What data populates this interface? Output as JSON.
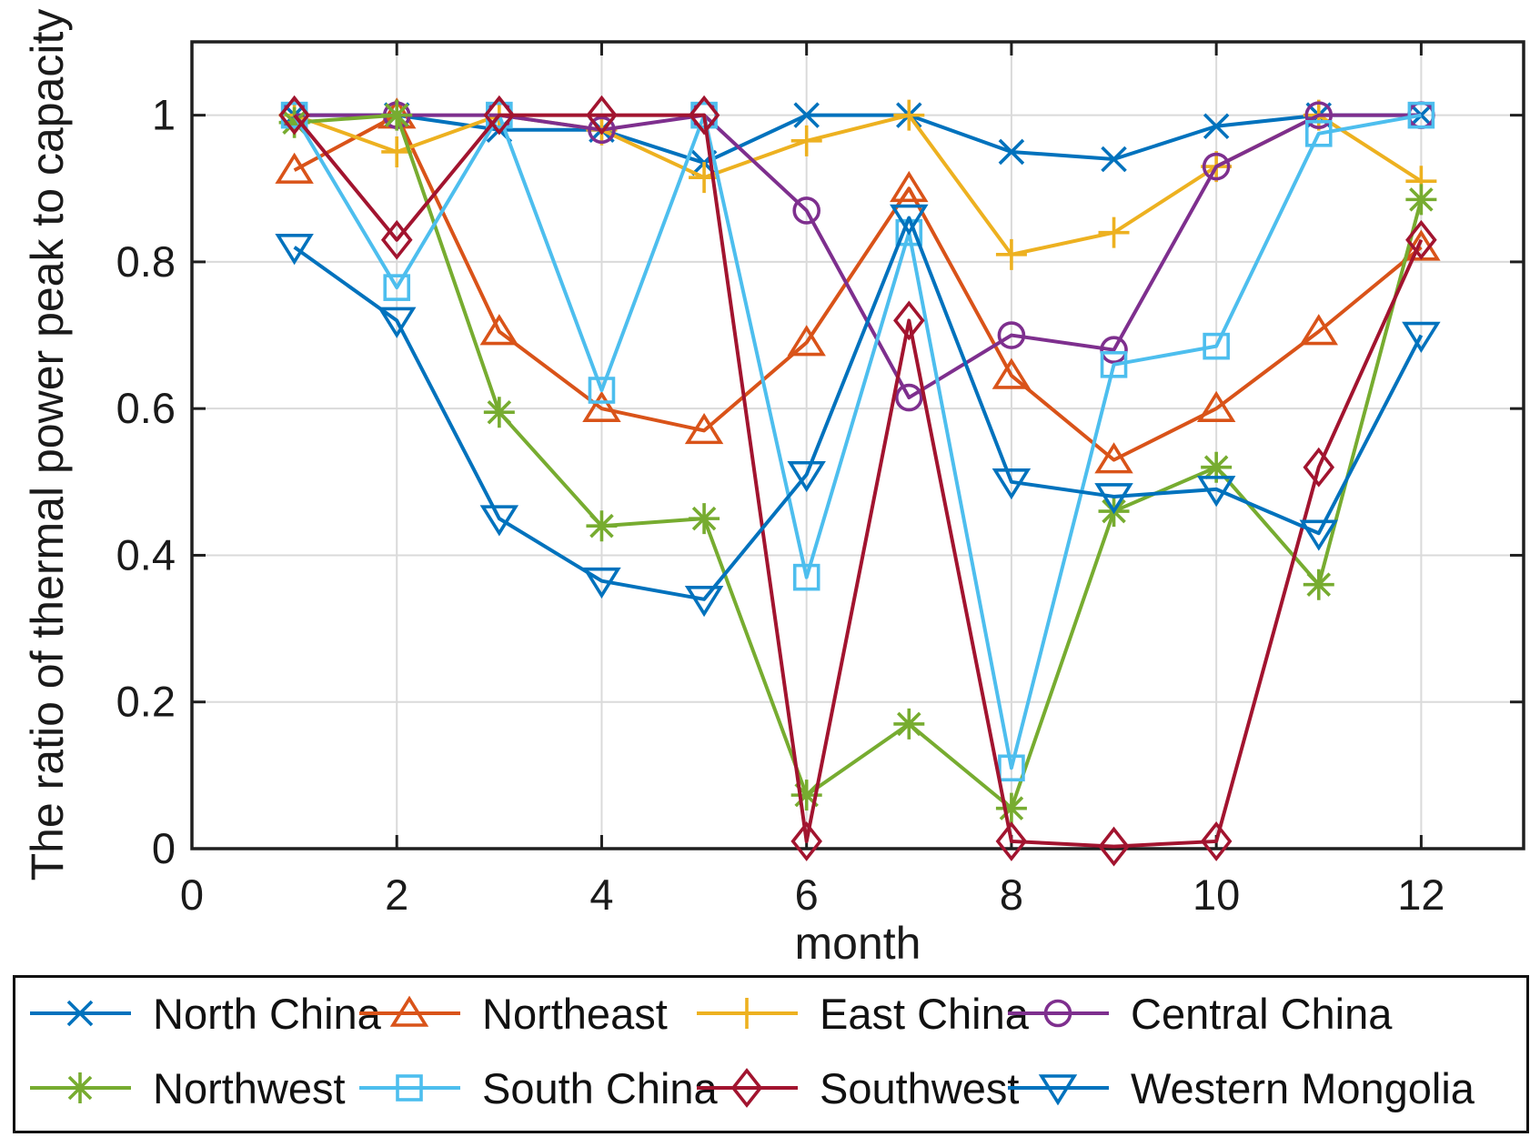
{
  "figure": {
    "background": "#ffffff",
    "axis_color": "#1f1f1f",
    "grid_color": "#dadada"
  },
  "chart_data": {
    "type": "line",
    "title": "",
    "xlabel": "month",
    "ylabel": "The ratio of thermal power peak to capacity",
    "xlim": [
      0,
      13
    ],
    "ylim": [
      0,
      1.1
    ],
    "xticks": [
      0,
      2,
      4,
      6,
      8,
      10,
      12
    ],
    "xtick_labels": [
      "0",
      "2",
      "4",
      "6",
      "8",
      "10",
      "12"
    ],
    "yticks": [
      0,
      0.2,
      0.4,
      0.6,
      0.8,
      1
    ],
    "ytick_labels": [
      "0",
      "0.2",
      "0.4",
      "0.6",
      "0.8",
      "1"
    ],
    "grid": true,
    "legend_position": "below-plot",
    "x": [
      1,
      2,
      3,
      4,
      5,
      6,
      7,
      8,
      9,
      10,
      11,
      12
    ],
    "series": [
      {
        "name": "North China",
        "color": "#0072BD",
        "marker": "x",
        "values": [
          1.0,
          1.0,
          0.98,
          0.98,
          0.935,
          1.0,
          1.0,
          0.95,
          0.94,
          0.985,
          1.0,
          1.0
        ]
      },
      {
        "name": "Northeast",
        "color": "#D95319",
        "marker": "triangle-up",
        "values": [
          0.925,
          1.0,
          0.705,
          0.6,
          0.57,
          0.69,
          0.9,
          0.645,
          0.53,
          0.6,
          0.705,
          0.82
        ]
      },
      {
        "name": "East China",
        "color": "#EDB120",
        "marker": "plus",
        "values": [
          1.0,
          0.95,
          1.0,
          0.98,
          0.915,
          0.965,
          1.0,
          0.81,
          0.84,
          0.93,
          1.0,
          0.91
        ]
      },
      {
        "name": "Central China",
        "color": "#7E2F8E",
        "marker": "circle",
        "values": [
          1.0,
          1.0,
          1.0,
          0.98,
          1.0,
          0.87,
          0.615,
          0.7,
          0.68,
          0.93,
          1.0,
          1.0
        ]
      },
      {
        "name": "Northwest",
        "color": "#77AC30",
        "marker": "asterisk",
        "values": [
          0.99,
          1.0,
          0.595,
          0.44,
          0.45,
          0.073,
          0.17,
          0.055,
          0.46,
          0.52,
          0.36,
          0.885
        ]
      },
      {
        "name": "South China",
        "color": "#4DBEEE",
        "marker": "square",
        "values": [
          1.0,
          0.765,
          1.0,
          0.625,
          1.0,
          0.37,
          0.84,
          0.11,
          0.66,
          0.685,
          0.975,
          1.0
        ]
      },
      {
        "name": "Southwest",
        "color": "#A2142F",
        "marker": "diamond",
        "values": [
          1.0,
          0.83,
          1.0,
          1.0,
          1.0,
          0.01,
          0.72,
          0.01,
          0.003,
          0.01,
          0.52,
          0.83
        ]
      },
      {
        "name": "Western Mongolia",
        "color": "#0072BD",
        "marker": "triangle-down",
        "values": [
          0.82,
          0.72,
          0.45,
          0.365,
          0.34,
          0.51,
          0.86,
          0.5,
          0.48,
          0.49,
          0.43,
          0.7
        ]
      }
    ]
  }
}
